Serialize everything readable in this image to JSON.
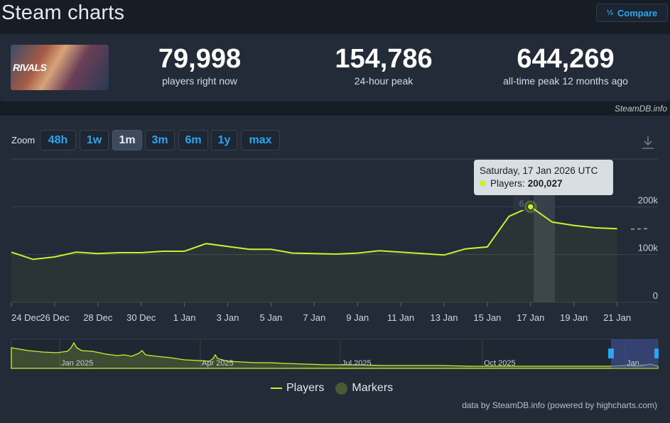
{
  "header": {
    "title": "Steam charts",
    "compare_label": "Compare",
    "compare_icon": "fraction-icon"
  },
  "game": {
    "logo_text": "RIVALS"
  },
  "stats": [
    {
      "value": "79,998",
      "label": "players right now"
    },
    {
      "value": "154,786",
      "label": "24-hour peak"
    },
    {
      "value": "644,269",
      "label": "all-time peak 12 months ago"
    }
  ],
  "credit": "SteamDB.info",
  "zoom": {
    "label": "Zoom",
    "buttons": [
      "48h",
      "1w",
      "1m",
      "3m",
      "6m",
      "1y",
      "max"
    ],
    "active": "1m"
  },
  "tooltip": {
    "date": "Saturday, 17 Jan 2026 UTC",
    "series": "Players:",
    "value": "200,027"
  },
  "marker_label": "6",
  "legend": {
    "players": "Players",
    "markers": "Markers"
  },
  "footnote": "data by SteamDB.info (powered by highcharts.com)",
  "colors": {
    "line": "#c7f230",
    "background": "#222b37",
    "accent": "#2aa6f0"
  },
  "chart_data": {
    "type": "line",
    "y_ticks": [
      "0",
      "100k",
      "200k"
    ],
    "ylim": [
      0,
      300000
    ],
    "x_ticks": [
      "24 Dec",
      "26 Dec",
      "28 Dec",
      "30 Dec",
      "1 Jan",
      "3 Jan",
      "5 Jan",
      "7 Jan",
      "9 Jan",
      "11 Jan",
      "13 Jan",
      "15 Jan",
      "17 Jan",
      "19 Jan",
      "21 Jan"
    ],
    "series": [
      {
        "name": "Players",
        "x": [
          "2025-12-24",
          "2025-12-25",
          "2025-12-26",
          "2025-12-27",
          "2025-12-28",
          "2025-12-29",
          "2025-12-30",
          "2025-12-31",
          "2026-01-01",
          "2026-01-02",
          "2026-01-03",
          "2026-01-04",
          "2026-01-05",
          "2026-01-06",
          "2026-01-07",
          "2026-01-08",
          "2026-01-09",
          "2026-01-10",
          "2026-01-11",
          "2026-01-12",
          "2026-01-13",
          "2026-01-14",
          "2026-01-15",
          "2026-01-16",
          "2026-01-17",
          "2026-01-18",
          "2026-01-19",
          "2026-01-20",
          "2026-01-21"
        ],
        "values": [
          105000,
          90000,
          95000,
          105000,
          102000,
          104000,
          104000,
          107000,
          107000,
          123000,
          117000,
          111000,
          111000,
          103000,
          102000,
          101000,
          103000,
          108000,
          105000,
          102000,
          99000,
          112000,
          116000,
          180000,
          200027,
          168000,
          161000,
          156000,
          154000
        ]
      }
    ],
    "navigator": {
      "x_ticks": [
        "Jan 2025",
        "Apr 2025",
        "Jul 2025",
        "Oct 2025",
        "Jan..."
      ]
    }
  }
}
